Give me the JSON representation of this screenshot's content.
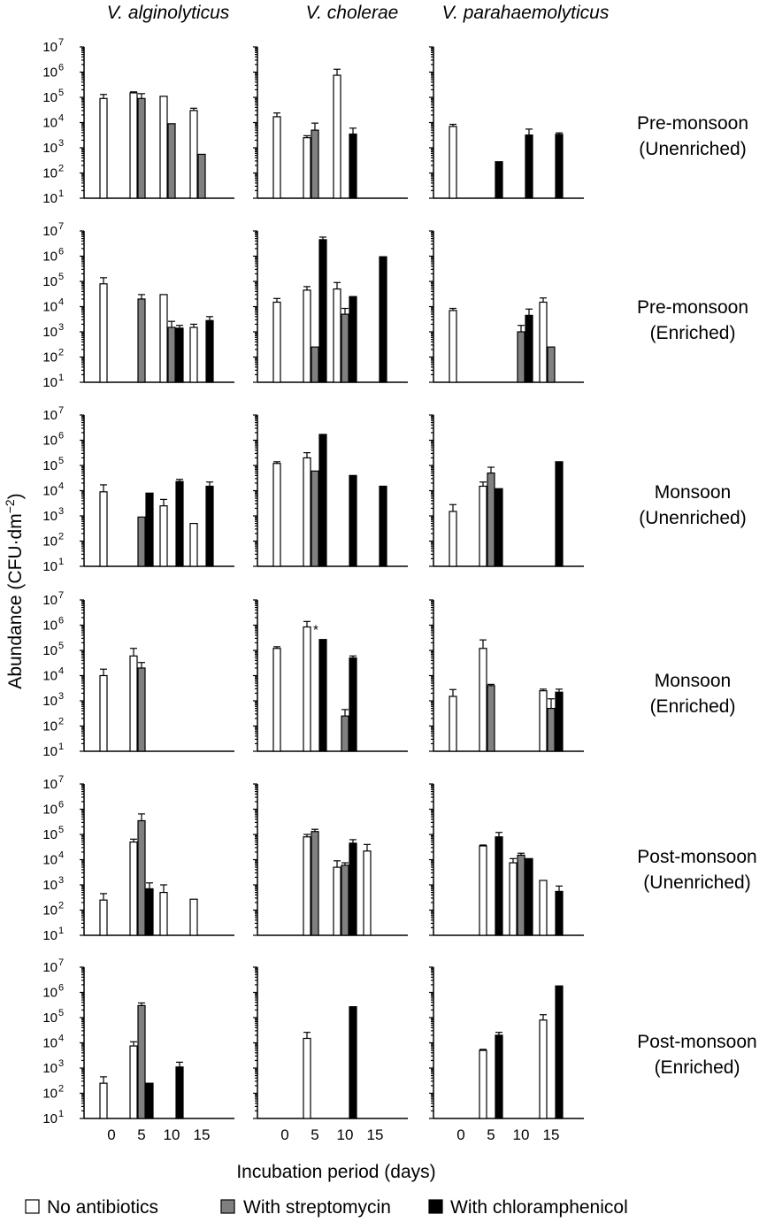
{
  "chart_data": {
    "type": "bar",
    "ylabel": "Abundance (CFU·dm−2)",
    "ylabel_parts": {
      "main": "Abundance (CFU·dm",
      "sup": "−2",
      "close": ")"
    },
    "xlabel": "Incubation period (days)",
    "y_scale": "log",
    "ylim": [
      10,
      10000000
    ],
    "yticks": [
      {
        "value": 10,
        "base": "10",
        "exp": "1"
      },
      {
        "value": 100,
        "base": "10",
        "exp": "2"
      },
      {
        "value": 1000,
        "base": "10",
        "exp": "3"
      },
      {
        "value": 10000,
        "base": "10",
        "exp": "4"
      },
      {
        "value": 100000,
        "base": "10",
        "exp": "5"
      },
      {
        "value": 1000000,
        "base": "10",
        "exp": "6"
      },
      {
        "value": 10000000,
        "base": "10",
        "exp": "7"
      }
    ],
    "x_ticks": [
      0,
      5,
      10,
      15
    ],
    "x_tick_labels": [
      "0",
      "5",
      "10",
      "15"
    ],
    "columns": [
      "V. alginolyticus",
      "V. cholerae",
      "V. parahaemolyticus"
    ],
    "rows": [
      {
        "line1": "Pre-monsoon",
        "line2": "(Unenriched)"
      },
      {
        "line1": "Pre-monsoon",
        "line2": "(Enriched)"
      },
      {
        "line1": "Monsoon",
        "line2": "(Unenriched)"
      },
      {
        "line1": "Monsoon",
        "line2": "(Enriched)"
      },
      {
        "line1": "Post-monsoon",
        "line2": "(Unenriched)"
      },
      {
        "line1": "Post-monsoon",
        "line2": "(Enriched)"
      }
    ],
    "treatments": [
      {
        "key": "none",
        "label": "No antibiotics",
        "color": "#ffffff"
      },
      {
        "key": "strep",
        "label": "With streptomycin",
        "color": "#808080"
      },
      {
        "key": "chlor",
        "label": "With chloramphenicol",
        "color": "#000000"
      }
    ],
    "bar_colors": {
      "none": "#ffffff",
      "strep": "#808080",
      "chlor": "#000000"
    },
    "panels": [
      [
        [
          {
            "day": 0,
            "t": "none",
            "value": 90000,
            "err": 130000
          },
          {
            "day": 5,
            "t": "none",
            "value": 150000,
            "err": 165000
          },
          {
            "day": 5,
            "t": "strep",
            "value": 90000,
            "err": 140000
          },
          {
            "day": 10,
            "t": "none",
            "value": 110000
          },
          {
            "day": 10,
            "t": "strep",
            "value": 9000
          },
          {
            "day": 15,
            "t": "none",
            "value": 30000,
            "err": 37000
          },
          {
            "day": 15,
            "t": "strep",
            "value": 550
          }
        ],
        [
          {
            "day": 0,
            "t": "none",
            "value": 17000,
            "err": 24000
          },
          {
            "day": 5,
            "t": "none",
            "value": 2500,
            "err": 3000
          },
          {
            "day": 5,
            "t": "strep",
            "value": 5000,
            "err": 9500
          },
          {
            "day": 10,
            "t": "none",
            "value": 750000,
            "err": 1300000
          },
          {
            "day": 10,
            "t": "chlor",
            "value": 3500,
            "err": 6000
          }
        ],
        [
          {
            "day": 0,
            "t": "none",
            "value": 7000,
            "err": 8500
          },
          {
            "day": 5,
            "t": "chlor",
            "value": 280
          },
          {
            "day": 10,
            "t": "chlor",
            "value": 3200,
            "err": 5500
          },
          {
            "day": 15,
            "t": "chlor",
            "value": 3400,
            "err": 3900
          }
        ]
      ],
      [
        [
          {
            "day": 0,
            "t": "none",
            "value": 80000,
            "err": 140000
          },
          {
            "day": 5,
            "t": "strep",
            "value": 20000,
            "err": 30000
          },
          {
            "day": 10,
            "t": "none",
            "value": 30000
          },
          {
            "day": 10,
            "t": "strep",
            "value": 1500,
            "err": 2600
          },
          {
            "day": 10,
            "t": "chlor",
            "value": 1400,
            "err": 1800
          },
          {
            "day": 15,
            "t": "none",
            "value": 1500,
            "err": 2000
          },
          {
            "day": 15,
            "t": "chlor",
            "value": 2800,
            "err": 4000
          }
        ],
        [
          {
            "day": 0,
            "t": "none",
            "value": 15000,
            "err": 21000
          },
          {
            "day": 5,
            "t": "none",
            "value": 45000,
            "err": 62000
          },
          {
            "day": 5,
            "t": "strep",
            "value": 250
          },
          {
            "day": 5,
            "t": "chlor",
            "value": 4500000,
            "err": 5700000
          },
          {
            "day": 10,
            "t": "none",
            "value": 50000,
            "err": 90000
          },
          {
            "day": 10,
            "t": "strep",
            "value": 5000,
            "err": 8500
          },
          {
            "day": 10,
            "t": "chlor",
            "value": 25000
          },
          {
            "day": 15,
            "t": "chlor",
            "value": 950000
          }
        ],
        [
          {
            "day": 0,
            "t": "none",
            "value": 7000,
            "err": 8500
          },
          {
            "day": 10,
            "t": "strep",
            "value": 1000,
            "err": 1800
          },
          {
            "day": 10,
            "t": "chlor",
            "value": 4500,
            "err": 8000
          },
          {
            "day": 15,
            "t": "none",
            "value": 15000,
            "err": 22000
          },
          {
            "day": 15,
            "t": "strep",
            "value": 250
          }
        ]
      ],
      [
        [
          {
            "day": 0,
            "t": "none",
            "value": 9000,
            "err": 17000
          },
          {
            "day": 5,
            "t": "strep",
            "value": 900
          },
          {
            "day": 5,
            "t": "chlor",
            "value": 8000
          },
          {
            "day": 10,
            "t": "none",
            "value": 2500,
            "err": 4500
          },
          {
            "day": 10,
            "t": "chlor",
            "value": 23000,
            "err": 28000
          },
          {
            "day": 15,
            "t": "none",
            "value": 500
          },
          {
            "day": 15,
            "t": "chlor",
            "value": 15000,
            "err": 22000
          }
        ],
        [
          {
            "day": 0,
            "t": "none",
            "value": 120000,
            "err": 140000
          },
          {
            "day": 5,
            "t": "none",
            "value": 200000,
            "err": 320000
          },
          {
            "day": 5,
            "t": "strep",
            "value": 60000
          },
          {
            "day": 5,
            "t": "chlor",
            "value": 1700000
          },
          {
            "day": 10,
            "t": "chlor",
            "value": 40000
          },
          {
            "day": 15,
            "t": "chlor",
            "value": 15000
          }
        ],
        [
          {
            "day": 0,
            "t": "none",
            "value": 1500,
            "err": 2800
          },
          {
            "day": 5,
            "t": "none",
            "value": 15000,
            "err": 22000
          },
          {
            "day": 5,
            "t": "strep",
            "value": 50000,
            "err": 85000
          },
          {
            "day": 5,
            "t": "chlor",
            "value": 12000
          },
          {
            "day": 15,
            "t": "chlor",
            "value": 140000
          }
        ]
      ],
      [
        [
          {
            "day": 0,
            "t": "none",
            "value": 10000,
            "err": 18000
          },
          {
            "day": 5,
            "t": "none",
            "value": 60000,
            "err": 120000
          },
          {
            "day": 5,
            "t": "strep",
            "value": 20000,
            "err": 33000
          }
        ],
        [
          {
            "day": 0,
            "t": "none",
            "value": 120000,
            "err": 140000
          },
          {
            "day": 5,
            "t": "none",
            "value": 850000,
            "err": 1400000,
            "note": "*"
          },
          {
            "day": 5,
            "t": "chlor",
            "value": 270000
          },
          {
            "day": 10,
            "t": "strep",
            "value": 250,
            "err": 450
          },
          {
            "day": 10,
            "t": "chlor",
            "value": 50000,
            "err": 60000
          }
        ],
        [
          {
            "day": 0,
            "t": "none",
            "value": 1500,
            "err": 2800
          },
          {
            "day": 5,
            "t": "none",
            "value": 120000,
            "err": 260000
          },
          {
            "day": 5,
            "t": "strep",
            "value": 4000,
            "err": 4500
          },
          {
            "day": 15,
            "t": "none",
            "value": 2500,
            "err": 2900
          },
          {
            "day": 15,
            "t": "strep",
            "value": 500,
            "err": 1200
          },
          {
            "day": 15,
            "t": "chlor",
            "value": 2200,
            "err": 2900
          }
        ]
      ],
      [
        [
          {
            "day": 0,
            "t": "none",
            "value": 250,
            "err": 450
          },
          {
            "day": 5,
            "t": "none",
            "value": 50000,
            "err": 65000
          },
          {
            "day": 5,
            "t": "strep",
            "value": 350000,
            "err": 650000
          },
          {
            "day": 5,
            "t": "chlor",
            "value": 700,
            "err": 1200
          },
          {
            "day": 10,
            "t": "none",
            "value": 500,
            "err": 1000
          },
          {
            "day": 15,
            "t": "none",
            "value": 270
          }
        ],
        [
          {
            "day": 5,
            "t": "none",
            "value": 80000,
            "err": 100000
          },
          {
            "day": 5,
            "t": "strep",
            "value": 130000,
            "err": 160000
          },
          {
            "day": 10,
            "t": "none",
            "value": 5000,
            "err": 9000
          },
          {
            "day": 10,
            "t": "strep",
            "value": 6000,
            "err": 7500
          },
          {
            "day": 10,
            "t": "chlor",
            "value": 45000,
            "err": 62000
          },
          {
            "day": 15,
            "t": "none",
            "value": 22000,
            "err": 40000
          }
        ],
        [
          {
            "day": 5,
            "t": "none",
            "value": 35000,
            "err": 38000
          },
          {
            "day": 5,
            "t": "chlor",
            "value": 80000,
            "err": 120000
          },
          {
            "day": 10,
            "t": "none",
            "value": 7500,
            "err": 11000
          },
          {
            "day": 10,
            "t": "strep",
            "value": 15000,
            "err": 18000
          },
          {
            "day": 10,
            "t": "chlor",
            "value": 11000
          },
          {
            "day": 15,
            "t": "none",
            "value": 1500
          },
          {
            "day": 15,
            "t": "chlor",
            "value": 550,
            "err": 900
          }
        ]
      ],
      [
        [
          {
            "day": 0,
            "t": "none",
            "value": 250,
            "err": 450
          },
          {
            "day": 5,
            "t": "none",
            "value": 7500,
            "err": 11000
          },
          {
            "day": 5,
            "t": "strep",
            "value": 300000,
            "err": 380000
          },
          {
            "day": 5,
            "t": "chlor",
            "value": 250
          },
          {
            "day": 10,
            "t": "chlor",
            "value": 1100,
            "err": 1700
          }
        ],
        [
          {
            "day": 5,
            "t": "none",
            "value": 15000,
            "err": 26000
          },
          {
            "day": 10,
            "t": "chlor",
            "value": 270000
          }
        ],
        [
          {
            "day": 5,
            "t": "none",
            "value": 5000,
            "err": 5500
          },
          {
            "day": 5,
            "t": "chlor",
            "value": 20000,
            "err": 26000
          },
          {
            "day": 15,
            "t": "none",
            "value": 80000,
            "err": 130000
          },
          {
            "day": 15,
            "t": "chlor",
            "value": 1800000
          }
        ]
      ]
    ]
  }
}
